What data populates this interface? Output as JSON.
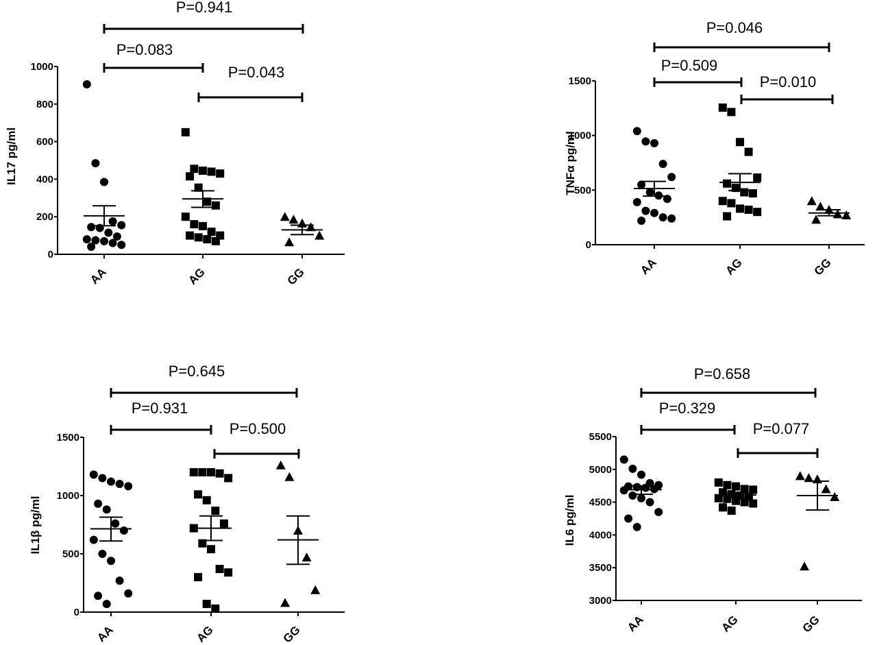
{
  "chart_data": [
    {
      "type": "scatter",
      "ylabel": "IL17 pg/ml",
      "categories": [
        "AA",
        "AG",
        "GG"
      ],
      "ylim": [
        0,
        1000
      ],
      "yticks": [
        "0",
        "200",
        "400",
        "600",
        "800",
        "1000"
      ],
      "markers": [
        "circle",
        "square",
        "triangle"
      ],
      "series": [
        {
          "category": "AA",
          "values": [
            905,
            485,
            385,
            175,
            155,
            145,
            140,
            115,
            95,
            80,
            75,
            70,
            60,
            50,
            40
          ]
        },
        {
          "category": "AG",
          "values": [
            650,
            455,
            445,
            440,
            430,
            415,
            355,
            280,
            260,
            200,
            160,
            150,
            120,
            100,
            100,
            90,
            80,
            70
          ]
        },
        {
          "category": "GG",
          "values": [
            200,
            185,
            165,
            145,
            100,
            65
          ]
        }
      ],
      "summary": [
        {
          "category": "AA",
          "mean": 205,
          "upper": 258,
          "lower": 152
        },
        {
          "category": "AG",
          "mean": 295,
          "upper": 338,
          "lower": 250
        },
        {
          "category": "GG",
          "mean": 130,
          "upper": 155,
          "lower": 105
        }
      ],
      "comparisons": [
        {
          "from": "AA",
          "to": "GG",
          "label": "P=0.941"
        },
        {
          "from": "AA",
          "to": "AG",
          "label": "P=0.083"
        },
        {
          "from": "AG",
          "to": "GG",
          "label": "P=0.043"
        }
      ]
    },
    {
      "type": "scatter",
      "ylabel": "TNFα pg/ml",
      "categories": [
        "AA",
        "AG",
        "GG"
      ],
      "ylim": [
        0,
        1500
      ],
      "yticks": [
        "0",
        "500",
        "1000",
        "1500"
      ],
      "markers": [
        "circle",
        "square",
        "triangle"
      ],
      "series": [
        {
          "category": "AA",
          "values": [
            1040,
            945,
            930,
            740,
            620,
            550,
            480,
            450,
            420,
            390,
            310,
            290,
            250,
            240,
            220
          ]
        },
        {
          "category": "AG",
          "values": [
            1255,
            1215,
            940,
            850,
            615,
            560,
            520,
            480,
            470,
            400,
            380,
            330,
            320,
            300,
            260
          ]
        },
        {
          "category": "GG",
          "values": [
            400,
            350,
            320,
            280,
            270,
            230
          ]
        }
      ],
      "summary": [
        {
          "category": "AA",
          "mean": 515,
          "upper": 580,
          "lower": 445
        },
        {
          "category": "AG",
          "mean": 570,
          "upper": 650,
          "lower": 495
        },
        {
          "category": "GG",
          "mean": 290,
          "upper": 320,
          "lower": 265
        }
      ],
      "comparisons": [
        {
          "from": "AA",
          "to": "GG",
          "label": "P=0.046"
        },
        {
          "from": "AA",
          "to": "AG",
          "label": "P=0.509"
        },
        {
          "from": "AG",
          "to": "GG",
          "label": "P=0.010"
        }
      ]
    },
    {
      "type": "scatter",
      "ylabel": "IL1β pg/ml",
      "categories": [
        "AA",
        "AG",
        "GG"
      ],
      "ylim": [
        0,
        1500
      ],
      "yticks": [
        "0",
        "500",
        "1000",
        "1500"
      ],
      "markers": [
        "circle",
        "square",
        "triangle"
      ],
      "series": [
        {
          "category": "AA",
          "values": [
            1180,
            1150,
            1120,
            1100,
            1080,
            930,
            880,
            760,
            700,
            620,
            500,
            440,
            270,
            160,
            140,
            70
          ]
        },
        {
          "category": "AG",
          "values": [
            1200,
            1200,
            1200,
            1190,
            1150,
            1010,
            960,
            870,
            760,
            720,
            590,
            540,
            370,
            340,
            300,
            70,
            30
          ]
        },
        {
          "category": "GG",
          "values": [
            1260,
            1160,
            700,
            470,
            190,
            80
          ]
        }
      ],
      "summary": [
        {
          "category": "AA",
          "mean": 715,
          "upper": 815,
          "lower": 610
        },
        {
          "category": "AG",
          "mean": 720,
          "upper": 825,
          "lower": 615
        },
        {
          "category": "GG",
          "mean": 620,
          "upper": 825,
          "lower": 410
        }
      ],
      "comparisons": [
        {
          "from": "AA",
          "to": "GG",
          "label": "P=0.645"
        },
        {
          "from": "AA",
          "to": "AG",
          "label": "P=0.931"
        },
        {
          "from": "AG",
          "to": "GG",
          "label": "P=0.500"
        }
      ]
    },
    {
      "type": "scatter",
      "ylabel": "IL6 pg/ml",
      "categories": [
        "AA",
        "AG",
        "GG"
      ],
      "ylim": [
        3000,
        5500
      ],
      "yticks": [
        "3000",
        "3500",
        "4000",
        "4500",
        "5000",
        "5500"
      ],
      "markers": [
        "circle",
        "square",
        "triangle"
      ],
      "series": [
        {
          "category": "AA",
          "values": [
            5150,
            5010,
            4920,
            4790,
            4760,
            4740,
            4730,
            4720,
            4700,
            4680,
            4600,
            4560,
            4500,
            4350,
            4250,
            4120
          ]
        },
        {
          "category": "AG",
          "values": [
            4800,
            4760,
            4740,
            4700,
            4690,
            4650,
            4620,
            4600,
            4580,
            4560,
            4550,
            4520,
            4500,
            4480,
            4420,
            4370
          ]
        },
        {
          "category": "GG",
          "values": [
            4900,
            4870,
            4850,
            4700,
            4580,
            3520
          ]
        }
      ],
      "summary": [
        {
          "category": "AA",
          "mean": 4690,
          "upper": 4750,
          "lower": 4620
        },
        {
          "category": "AG",
          "mean": 4610,
          "upper": 4640,
          "lower": 4580
        },
        {
          "category": "GG",
          "mean": 4600,
          "upper": 4820,
          "lower": 4380
        }
      ],
      "comparisons": [
        {
          "from": "AA",
          "to": "GG",
          "label": "P=0.658"
        },
        {
          "from": "AA",
          "to": "AG",
          "label": "P=0.329"
        },
        {
          "from": "AG",
          "to": "GG",
          "label": "P=0.077"
        }
      ]
    }
  ]
}
